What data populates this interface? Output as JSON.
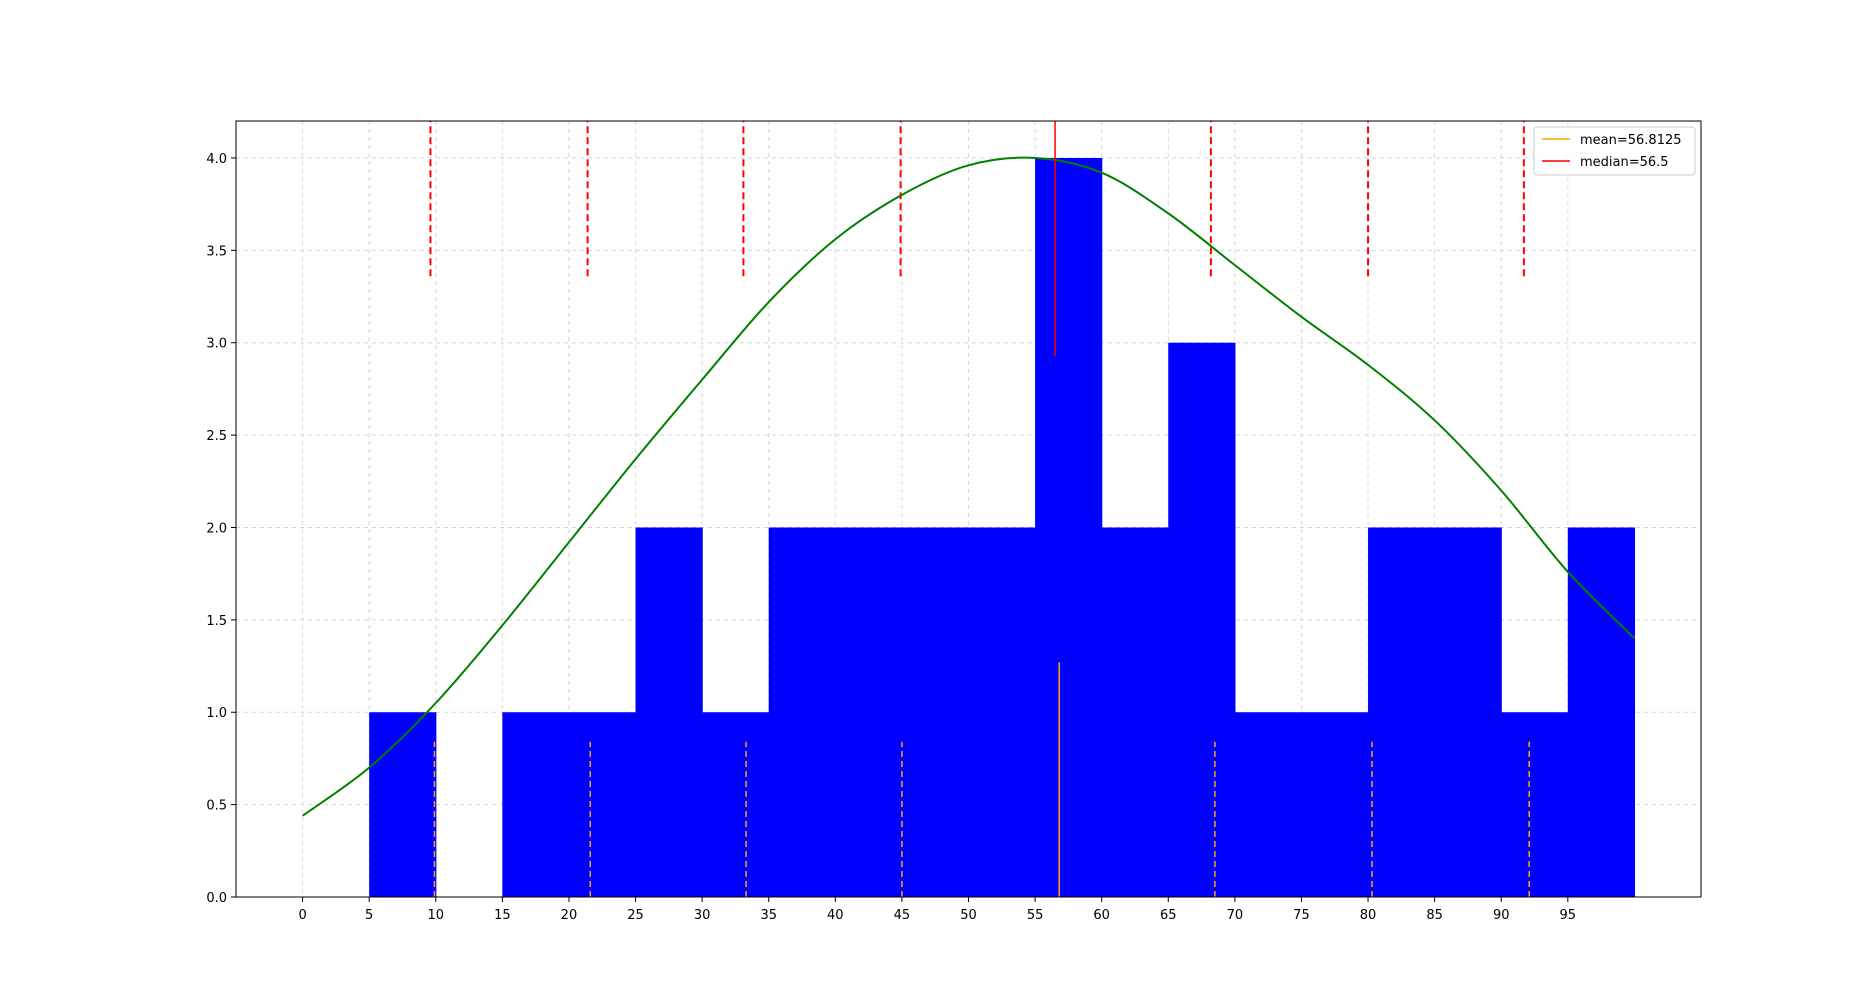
{
  "chart_data": {
    "type": "bar",
    "title": "",
    "xlabel": "",
    "ylabel": "",
    "xlim": [
      -5,
      105
    ],
    "ylim": [
      0,
      4.2
    ],
    "bin_width": 5,
    "bins": [
      {
        "start": 5,
        "count": 1
      },
      {
        "start": 15,
        "count": 1
      },
      {
        "start": 20,
        "count": 1
      },
      {
        "start": 25,
        "count": 2
      },
      {
        "start": 30,
        "count": 1
      },
      {
        "start": 35,
        "count": 2
      },
      {
        "start": 40,
        "count": 2
      },
      {
        "start": 45,
        "count": 2
      },
      {
        "start": 50,
        "count": 2
      },
      {
        "start": 55,
        "count": 4
      },
      {
        "start": 60,
        "count": 2
      },
      {
        "start": 65,
        "count": 3
      },
      {
        "start": 70,
        "count": 1
      },
      {
        "start": 75,
        "count": 1
      },
      {
        "start": 80,
        "count": 2
      },
      {
        "start": 85,
        "count": 2
      },
      {
        "start": 90,
        "count": 1
      },
      {
        "start": 95,
        "count": 2
      }
    ],
    "bar_color": "#0000ff",
    "x_ticks": [
      0,
      5,
      10,
      15,
      20,
      25,
      30,
      35,
      40,
      45,
      50,
      55,
      60,
      65,
      70,
      75,
      80,
      85,
      90,
      95
    ],
    "y_ticks": [
      "0.0",
      "0.5",
      "1.0",
      "1.5",
      "2.0",
      "2.5",
      "3.0",
      "3.5",
      "4.0"
    ],
    "grid": true,
    "curve": {
      "color": "#008000",
      "points": [
        [
          0,
          0.44
        ],
        [
          5,
          0.7
        ],
        [
          10,
          1.05
        ],
        [
          15,
          1.47
        ],
        [
          20,
          1.92
        ],
        [
          25,
          2.37
        ],
        [
          30,
          2.8
        ],
        [
          35,
          3.22
        ],
        [
          40,
          3.56
        ],
        [
          45,
          3.8
        ],
        [
          50,
          3.96
        ],
        [
          55,
          4.0
        ],
        [
          60,
          3.92
        ],
        [
          65,
          3.7
        ],
        [
          70,
          3.42
        ],
        [
          75,
          3.14
        ],
        [
          80,
          2.88
        ],
        [
          85,
          2.58
        ],
        [
          90,
          2.2
        ],
        [
          95,
          1.76
        ],
        [
          100,
          1.4
        ]
      ]
    },
    "mean": {
      "value": 56.8125,
      "height": 1.27,
      "color": "#ffa500"
    },
    "median": {
      "value": 56.5,
      "y_from": 2.93,
      "y_to": 4.2,
      "color": "#ff0000"
    },
    "orange_dashed_lines": {
      "x": [
        9.9,
        21.6,
        33.3,
        45.0,
        68.5,
        80.3,
        92.1
      ],
      "y_to": 0.84,
      "color": "#ffa500"
    },
    "red_dashed_lines": {
      "x": [
        9.6,
        21.4,
        33.1,
        44.9,
        68.2,
        80.0,
        91.7
      ],
      "y_from": 3.36,
      "y_to": 4.2,
      "color": "#ff0000"
    },
    "legend": {
      "position": "top-right",
      "entries": [
        {
          "label": "mean=56.8125",
          "color": "#ffa500"
        },
        {
          "label": "median=56.5",
          "color": "#ff0000"
        }
      ]
    }
  }
}
